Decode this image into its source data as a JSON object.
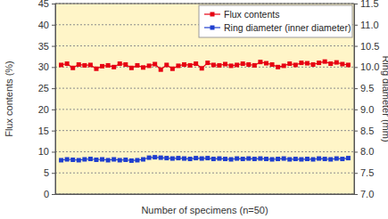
{
  "chart_data": {
    "type": "line",
    "x_label": "Number of specimens (n=50)",
    "y_label": "Flux contents (%)",
    "y2_label": "Ring diameter (mm)",
    "x": [
      1,
      2,
      3,
      4,
      5,
      6,
      7,
      8,
      9,
      10,
      11,
      12,
      13,
      14,
      15,
      16,
      17,
      18,
      19,
      20,
      21,
      22,
      23,
      24,
      25,
      26,
      27,
      28,
      29,
      30,
      31,
      32,
      33,
      34,
      35,
      36,
      37,
      38,
      39,
      40,
      41,
      42,
      43,
      44,
      45,
      46,
      47,
      48,
      49,
      50
    ],
    "xlim": [
      0,
      51
    ],
    "ylim": [
      0,
      45
    ],
    "yticks": [
      0,
      5,
      10,
      15,
      20,
      25,
      30,
      35,
      40,
      45
    ],
    "y2lim": [
      7,
      11.5
    ],
    "y2ticks": [
      {
        "value": 7,
        "label": "7.0"
      },
      {
        "value": 7.5,
        "label": "7.5"
      },
      {
        "value": 8,
        "label": "8.0"
      },
      {
        "value": 8.5,
        "label": "8.5"
      },
      {
        "value": 9,
        "label": "9.0"
      },
      {
        "value": 9.5,
        "label": "9.5"
      },
      {
        "value": 10,
        "label": "10.0"
      },
      {
        "value": 10.5,
        "label": "10.5"
      },
      {
        "value": 11,
        "label": "11.0"
      },
      {
        "value": 11.5,
        "label": "11.5"
      }
    ],
    "grid": true,
    "legend": "upper right",
    "series": [
      {
        "name": "Flux contents",
        "color": "#e60012",
        "marker": "square",
        "line_style": "solid",
        "values": [
          30.5,
          30.8,
          29.8,
          30.6,
          30.4,
          30.5,
          29.6,
          30.2,
          30.4,
          30.0,
          30.8,
          30.6,
          29.8,
          30.4,
          29.9,
          30.3,
          30.7,
          29.4,
          30.5,
          29.6,
          30.3,
          30.6,
          30.4,
          30.8,
          29.7,
          31.0,
          30.5,
          30.4,
          30.7,
          30.3,
          30.5,
          30.8,
          30.6,
          30.4,
          31.2,
          30.9,
          30.6,
          30.0,
          30.3,
          30.8,
          30.5,
          31.0,
          30.9,
          30.6,
          31.0,
          31.3,
          30.8,
          31.1,
          30.7,
          30.5
        ]
      },
      {
        "name": "Ring diameter (inner diameter)",
        "color": "#1f3fcf",
        "marker": "square",
        "line_style": "solid",
        "axis": "y2",
        "values": [
          7.8,
          7.82,
          7.81,
          7.8,
          7.82,
          7.83,
          7.81,
          7.82,
          7.8,
          7.82,
          7.8,
          7.81,
          7.79,
          7.8,
          7.82,
          7.86,
          7.87,
          7.86,
          7.85,
          7.84,
          7.85,
          7.84,
          7.83,
          7.85,
          7.84,
          7.85,
          7.83,
          7.84,
          7.83,
          7.82,
          7.84,
          7.83,
          7.84,
          7.83,
          7.84,
          7.83,
          7.82,
          7.83,
          7.84,
          7.82,
          7.83,
          7.82,
          7.83,
          7.82,
          7.84,
          7.83,
          7.82,
          7.84,
          7.83,
          7.85
        ]
      }
    ]
  }
}
